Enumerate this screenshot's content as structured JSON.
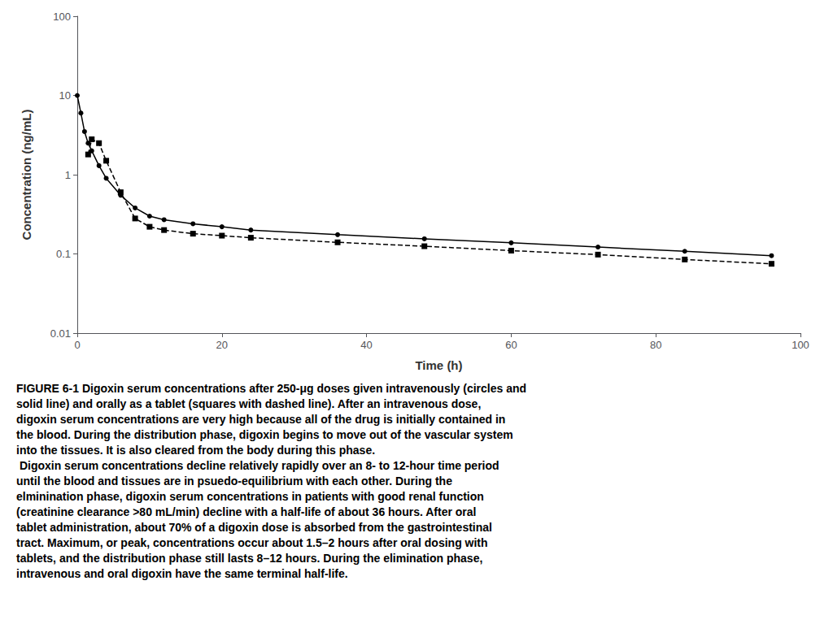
{
  "chart_data": {
    "type": "line",
    "x_label": "Time (h)",
    "y_label": "Concentration (ng/mL)",
    "log": "y",
    "grid": false,
    "xlim": [
      0,
      100
    ],
    "xticks": [
      0,
      20,
      40,
      60,
      80,
      100
    ],
    "ylim": [
      0.01,
      100
    ],
    "yticks": [
      0.01,
      0.1,
      1,
      10,
      100
    ],
    "series": [
      {
        "x": [
          0,
          0.5,
          1,
          1.5,
          2,
          3,
          4,
          6,
          8,
          10,
          12,
          16,
          20,
          24,
          36,
          48,
          60,
          72,
          84,
          96
        ],
        "values": [
          10.0,
          6.0,
          3.5,
          2.5,
          2.0,
          1.3,
          0.9,
          0.55,
          0.38,
          0.3,
          0.27,
          0.24,
          0.22,
          0.2,
          0.175,
          0.155,
          0.138,
          0.122,
          0.108,
          0.095
        ],
        "color": "#000000",
        "marker": "circle",
        "line_style": "solid"
      },
      {
        "x": [
          1.5,
          2,
          3,
          4,
          6,
          8,
          10,
          12,
          16,
          20,
          24,
          36,
          48,
          60,
          72,
          84,
          96
        ],
        "values": [
          1.8,
          2.8,
          2.5,
          1.5,
          0.6,
          0.28,
          0.22,
          0.2,
          0.18,
          0.17,
          0.16,
          0.14,
          0.125,
          0.11,
          0.098,
          0.085,
          0.075
        ],
        "color": "#000000",
        "marker": "square",
        "line_style": "dashed"
      }
    ],
    "caption": {
      "label": "FIGURE 6-1",
      "label_color": "#2E6DA4",
      "text": " Digoxin serum concentrations after 250-μg doses given intravenously (circles and\nsolid line) and orally as a tablet (squares with dashed line). After an intravenous dose,\ndigoxin serum concentrations are very high because all of the drug is initially contained in\nthe blood. During the distribution phase, digoxin begins to move out of the vascular system\ninto the tissues. It is also cleared from the body during this phase.\n Digoxin serum concentrations decline relatively rapidly over an 8- to 12-hour time period\nuntil the blood and tissues are in psuedo-equilibrium with each other. During the\nelminination phase, digoxin serum concentrations in patients with good renal function\n(creatinine clearance >80 mL/min) decline with a half-life of about 36 hours. After oral\ntablet administration, about 70% of a digoxin dose is absorbed from the gastrointestinal\ntract. Maximum, or peak, concentrations occur about 1.5–2 hours after oral dosing with\ntablets, and the distribution phase still lasts 8–12 hours. During the elimination phase,\nintravenous and oral digoxin have the same terminal half-life."
    }
  }
}
